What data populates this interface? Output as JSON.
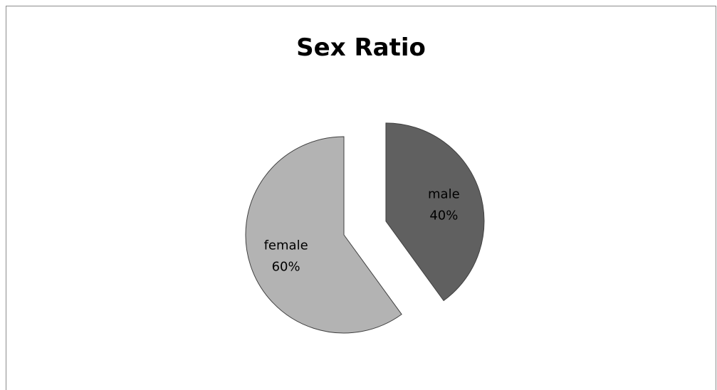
{
  "chart_data": {
    "type": "pie",
    "title": "Sex Ratio",
    "slices": [
      {
        "label": "male",
        "value": 40,
        "percent_label": "40%",
        "color": "#606060",
        "exploded": true
      },
      {
        "label": "female",
        "value": 60,
        "percent_label": "60%",
        "color": "#b3b3b3",
        "exploded": false
      }
    ],
    "edge_color": "#404040",
    "legend": "none"
  }
}
